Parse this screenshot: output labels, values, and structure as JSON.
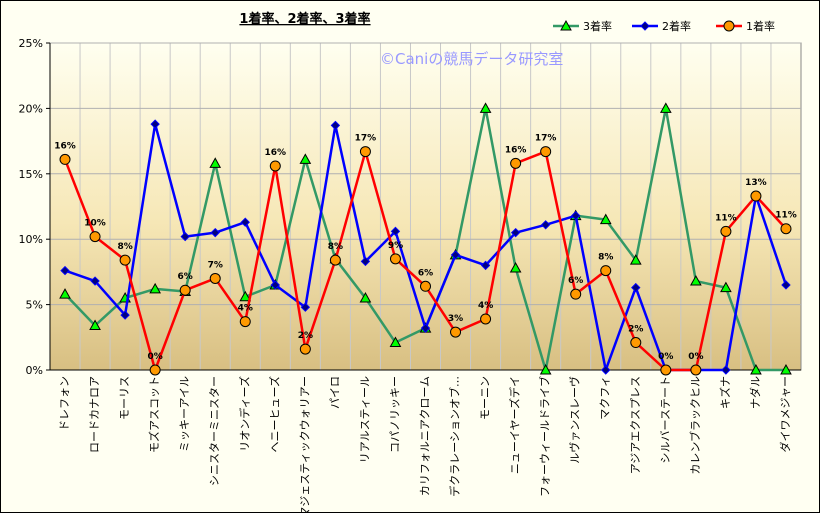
{
  "chart_data": {
    "type": "line",
    "title": "1着率、2着率、3着率",
    "watermark": "©Caniの競馬データ研究室",
    "ylim": [
      0,
      25
    ],
    "yticks": [
      "0%",
      "5%",
      "10%",
      "15%",
      "20%",
      "25%"
    ],
    "grid": true,
    "legend_position": "top-right",
    "categories": [
      "ドレフォン",
      "ロードカナロア",
      "モーリス",
      "モズアスコット",
      "ミッキーアイル",
      "シニスターミニスター",
      "リオンディーズ",
      "ヘニーヒューズ",
      "マジェスティックウォリアー",
      "パイロ",
      "リアルスティール",
      "コパノリッキー",
      "カリフォルニアクローム",
      "デクラレーションオブ…",
      "モーニン",
      "ニューイヤーズデイ",
      "フォーウィールドライブ",
      "ルヴァンスレーヴ",
      "マクフィ",
      "アジアエクスプレス",
      "シルバーステート",
      "カレンブラックヒル",
      "キズナ",
      "ナダル",
      "ダイワメジャー"
    ],
    "series": [
      {
        "name": "3着率",
        "color": "#339966",
        "marker": "triangle",
        "marker_fill": "#00ff00",
        "values": [
          5.8,
          3.4,
          5.5,
          6.2,
          6.0,
          15.8,
          5.6,
          6.5,
          16.1,
          8.5,
          5.5,
          2.1,
          3.2,
          8.8,
          20.0,
          7.8,
          0.0,
          11.8,
          11.5,
          8.4,
          20.0,
          6.8,
          6.3,
          0.0,
          0.0
        ]
      },
      {
        "name": "2着率",
        "color": "#0000ff",
        "marker": "diamond",
        "marker_fill": "#000080",
        "values": [
          7.6,
          6.8,
          4.2,
          18.8,
          10.2,
          10.5,
          11.3,
          6.5,
          4.8,
          18.7,
          8.3,
          10.6,
          3.2,
          8.8,
          8.0,
          10.5,
          11.1,
          11.8,
          0.0,
          6.3,
          0.0,
          0.0,
          0.0,
          13.3,
          6.5
        ]
      },
      {
        "name": "1着率",
        "color": "#ff0000",
        "marker": "circle",
        "marker_fill": "#ff9900",
        "labels": [
          "16%",
          "10%",
          "8%",
          "0%",
          "6%",
          "7%",
          "4%",
          "16%",
          "2%",
          "8%",
          "17%",
          "9%",
          "6%",
          "3%",
          "4%",
          "16%",
          "17%",
          "6%",
          "8%",
          "2%",
          "0%",
          "0%",
          "11%",
          "13%",
          "11%"
        ],
        "values": [
          16.1,
          10.2,
          8.4,
          0.0,
          6.1,
          7.0,
          3.7,
          15.6,
          1.6,
          8.4,
          16.7,
          8.5,
          6.4,
          2.9,
          3.9,
          15.8,
          16.7,
          5.8,
          7.6,
          2.1,
          0.0,
          0.0,
          10.6,
          13.3,
          10.8
        ]
      }
    ]
  }
}
